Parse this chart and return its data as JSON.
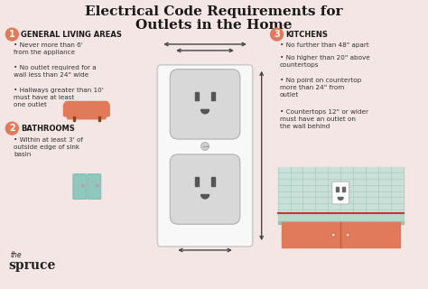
{
  "bg_color": "#f5e6e6",
  "title_line1": "Electrical Code Requirements for",
  "title_line2": "Outlets in the Home",
  "title_color": "#1a1a1a",
  "section1_num": "1",
  "section1_header": "GENERAL LIVING AREAS",
  "section1_bullets": [
    "Never more than 6'\nfrom the appliance",
    "No outlet required for a\nwall less than 24\" wide",
    "Hallways greater than 10'\nmust have at least\none outlet"
  ],
  "section2_num": "2",
  "section2_header": "BATHROOMS",
  "section2_bullets": [
    "Within at least 3' of\noutside edge of sink\nbasin"
  ],
  "section3_num": "3",
  "section3_header": "KITCHENS",
  "section3_bullets": [
    "No further than 48\" apart",
    "No higher than 20\" above\ncountertops",
    "No point on countertop\nmore than 24\" from\noutlet",
    "Countertops 12\" or wider\nmust have an outlet on\nthe wall behind"
  ],
  "num_circle_color": "#e07a5a",
  "header_color": "#1a1a1a",
  "bullet_color": "#333333",
  "outlet_plate_color": "#f8f8f8",
  "outlet_plate_border": "#cccccc",
  "outlet_face_color": "#d8d8d8",
  "outlet_slot_color": "#555555",
  "arrow_color": "#444444",
  "kitchen_tile_color": "#c8e0d8",
  "kitchen_cabinet_color": "#e07a5a",
  "sofa_color": "#e07a5a",
  "mirror_color": "#90c8c0",
  "spruce_color": "#222222"
}
